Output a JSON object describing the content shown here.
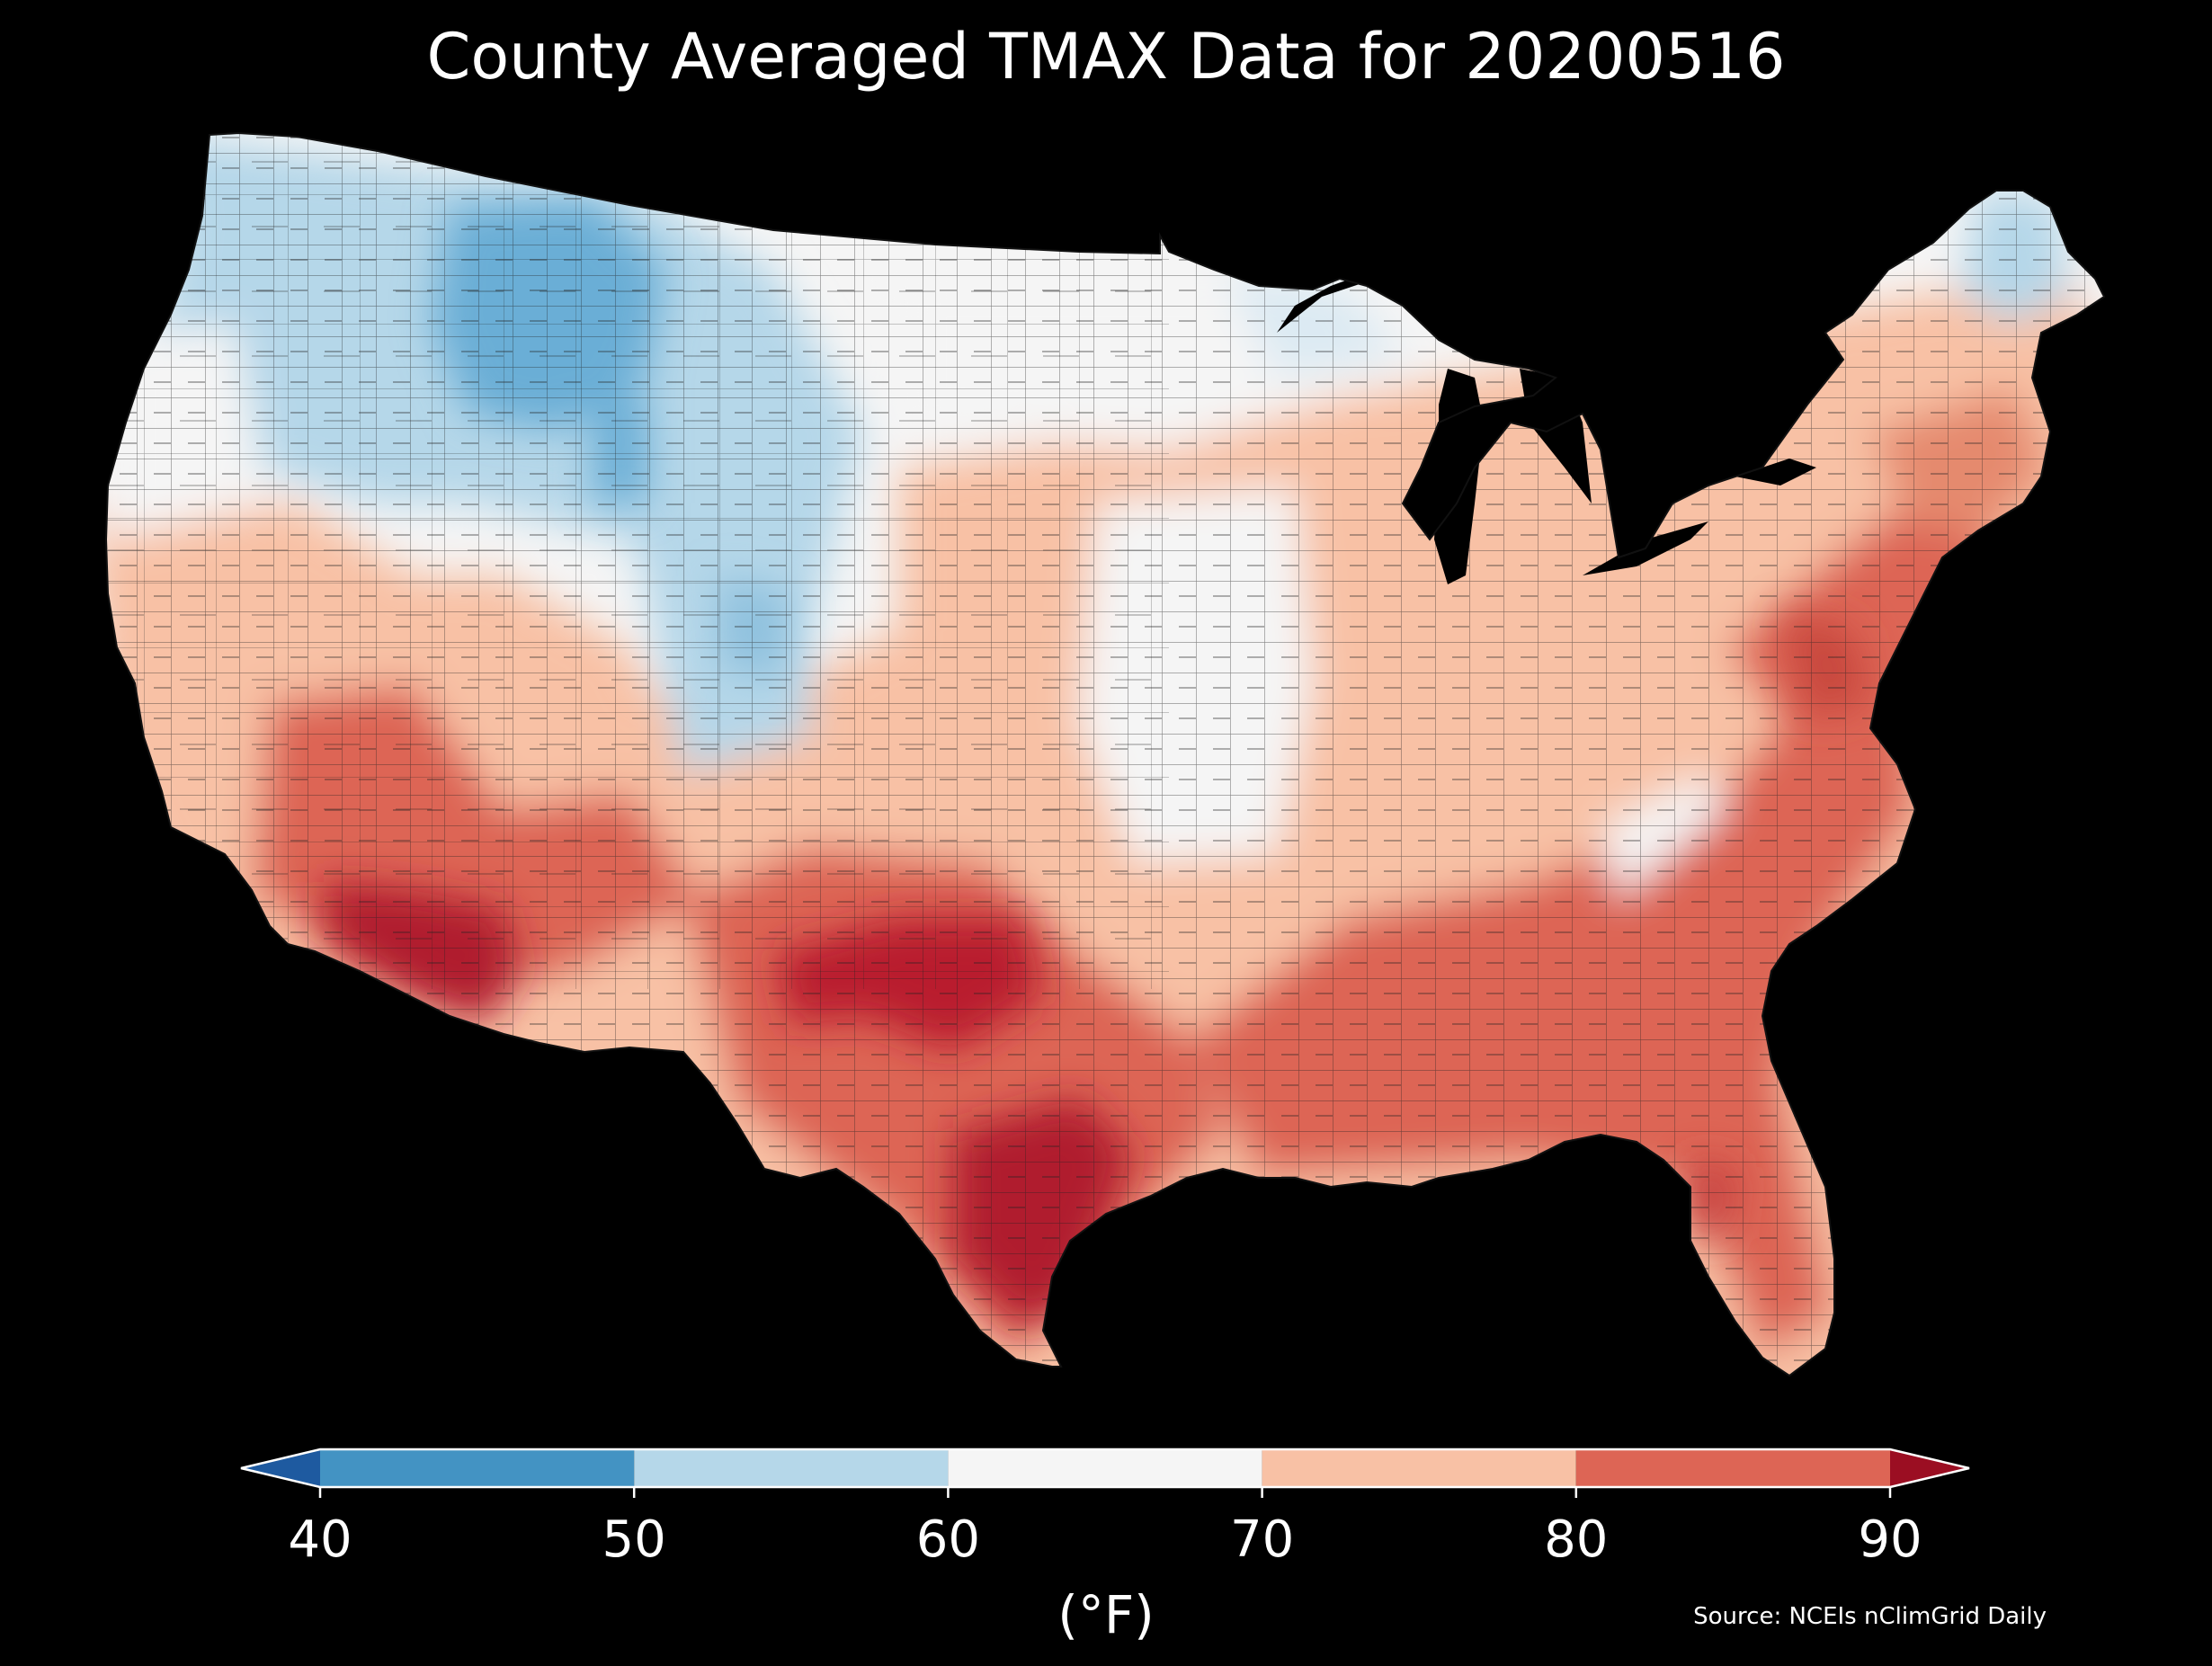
{
  "title": "County Averaged TMAX Data for 20200516",
  "colorbar": {
    "unit_label": "(°F)",
    "ticks": [
      "40",
      "50",
      "60",
      "70",
      "80",
      "90"
    ],
    "bins": [
      {
        "from": 40,
        "to": 50,
        "color": "#4393c3"
      },
      {
        "from": 50,
        "to": 60,
        "color": "#b5d7e9"
      },
      {
        "from": 60,
        "to": 70,
        "color": "#f5f5f5"
      },
      {
        "from": 70,
        "to": 80,
        "color": "#f8c1a5"
      },
      {
        "from": 80,
        "to": 90,
        "color": "#dd6555"
      }
    ],
    "under_color": "#1e5aa0",
    "over_color": "#9b0e22",
    "extend": "both"
  },
  "source": "Source: NCEIs nClimGrid Daily",
  "map": {
    "region": "Contiguous United States",
    "unit": "county",
    "legend_placement": "bottom",
    "regions": [
      {
        "name": "Pacific Northwest",
        "tmax_bin": "50-60"
      },
      {
        "name": "Northern Rockies",
        "tmax_bin": "40-50"
      },
      {
        "name": "Central Rockies",
        "tmax_bin": "50-60"
      },
      {
        "name": "Northern Plains",
        "tmax_bin": "60-70"
      },
      {
        "name": "Upper Midwest",
        "tmax_bin": "60-70"
      },
      {
        "name": "Desert Southwest",
        "tmax_bin": "80-90"
      },
      {
        "name": "Southern Arizona",
        "tmax_bin": ">90"
      },
      {
        "name": "South Texas",
        "tmax_bin": ">90"
      },
      {
        "name": "Southeast",
        "tmax_bin": "80-90"
      },
      {
        "name": "Mid-Atlantic",
        "tmax_bin": "80-90"
      },
      {
        "name": "Northern Maine",
        "tmax_bin": "50-60"
      },
      {
        "name": "Central Plains",
        "tmax_bin": "60-70"
      }
    ]
  }
}
